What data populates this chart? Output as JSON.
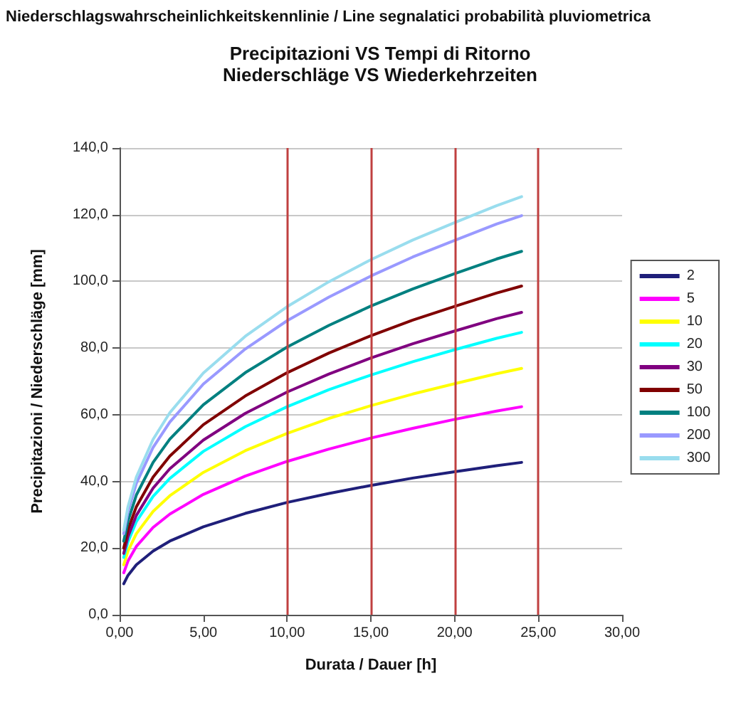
{
  "chart_data": {
    "type": "line",
    "title": "Precipitazioni VS Tempi di Ritorno",
    "subtitle": "Niederschläge VS Wiederkehrzeiten",
    "annotations": [
      "Niederschlagswahrscheinlichkeitskennlinie / Line segnalatici probabilità pluviometrica"
    ],
    "xlabel": "Durata / Dauer [h]",
    "ylabel": "Precipitazioni / Niederschläge [mm]",
    "x": [
      0.25,
      0.5,
      1,
      2,
      3,
      5,
      7.5,
      10,
      12.5,
      15,
      17.5,
      20,
      22.5,
      24
    ],
    "series": [
      {
        "name": "2",
        "color": "#1f1f7a",
        "values": [
          9.3,
          11.8,
          15.0,
          19.1,
          22.1,
          26.4,
          30.4,
          33.7,
          36.4,
          38.8,
          41.0,
          42.9,
          44.7,
          45.7
        ]
      },
      {
        "name": "5",
        "color": "#ff00ff",
        "values": [
          12.6,
          16.1,
          20.5,
          26.2,
          30.2,
          36.1,
          41.6,
          46.0,
          49.7,
          53.0,
          55.9,
          58.6,
          61.1,
          62.4
        ]
      },
      {
        "name": "10",
        "color": "#ffff00",
        "values": [
          15.0,
          19.1,
          24.3,
          31.0,
          35.7,
          42.7,
          49.2,
          54.4,
          58.9,
          62.7,
          66.2,
          69.3,
          72.3,
          73.9
        ]
      },
      {
        "name": "20",
        "color": "#00ffff",
        "values": [
          17.2,
          21.9,
          27.9,
          35.5,
          40.9,
          49.0,
          56.4,
          62.4,
          67.5,
          71.9,
          75.9,
          79.5,
          82.9,
          84.7
        ]
      },
      {
        "name": "30",
        "color": "#800080",
        "values": [
          18.4,
          23.4,
          29.8,
          38.0,
          43.8,
          52.4,
          60.4,
          66.8,
          72.2,
          77.0,
          81.3,
          85.1,
          88.8,
          90.7
        ]
      },
      {
        "name": "50",
        "color": "#800000",
        "values": [
          20.0,
          25.5,
          32.4,
          41.3,
          47.6,
          57.0,
          65.6,
          72.6,
          78.5,
          83.7,
          88.4,
          92.5,
          96.5,
          98.6
        ]
      },
      {
        "name": "100",
        "color": "#008080",
        "values": [
          22.1,
          28.1,
          35.9,
          45.7,
          52.7,
          63.0,
          72.6,
          80.3,
          86.8,
          92.6,
          97.7,
          102.3,
          106.7,
          109.0
        ]
      },
      {
        "name": "200",
        "color": "#9999ff",
        "values": [
          24.3,
          30.9,
          39.4,
          50.2,
          57.8,
          69.2,
          79.7,
          88.2,
          95.3,
          101.6,
          107.3,
          112.3,
          117.2,
          119.7
        ]
      },
      {
        "name": "300",
        "color": "#99ddee",
        "values": [
          25.4,
          32.4,
          41.3,
          52.6,
          60.6,
          72.5,
          83.5,
          92.4,
          99.9,
          106.5,
          112.4,
          117.6,
          122.7,
          125.4
        ]
      }
    ],
    "xlim": [
      0,
      30
    ],
    "xticks": [
      {
        "value": 0,
        "label": "0,00"
      },
      {
        "value": 5,
        "label": "5,00"
      },
      {
        "value": 10,
        "label": "10,00"
      },
      {
        "value": 15,
        "label": "15,00"
      },
      {
        "value": 20,
        "label": "20,00"
      },
      {
        "value": 25,
        "label": "25,00"
      },
      {
        "value": 30,
        "label": "30,00"
      }
    ],
    "ylim": [
      0,
      140
    ],
    "yticks": [
      {
        "value": 0,
        "label": "0,0"
      },
      {
        "value": 20,
        "label": "20,0"
      },
      {
        "value": 40,
        "label": "40,0"
      },
      {
        "value": 60,
        "label": "60,0"
      },
      {
        "value": 80,
        "label": "80,0"
      },
      {
        "value": 100,
        "label": "100,0"
      },
      {
        "value": 120,
        "label": "120,0"
      },
      {
        "value": 140,
        "label": "140,0"
      }
    ],
    "ref_lines": [
      {
        "axis": "x",
        "value": 10,
        "color": "#c04040"
      },
      {
        "axis": "x",
        "value": 15,
        "color": "#c04040"
      },
      {
        "axis": "x",
        "value": 20,
        "color": "#c04040"
      },
      {
        "axis": "x",
        "value": 25,
        "color": "#c04040"
      }
    ],
    "grid": true,
    "legend": "right",
    "marker": "none",
    "line_style": "solid"
  }
}
